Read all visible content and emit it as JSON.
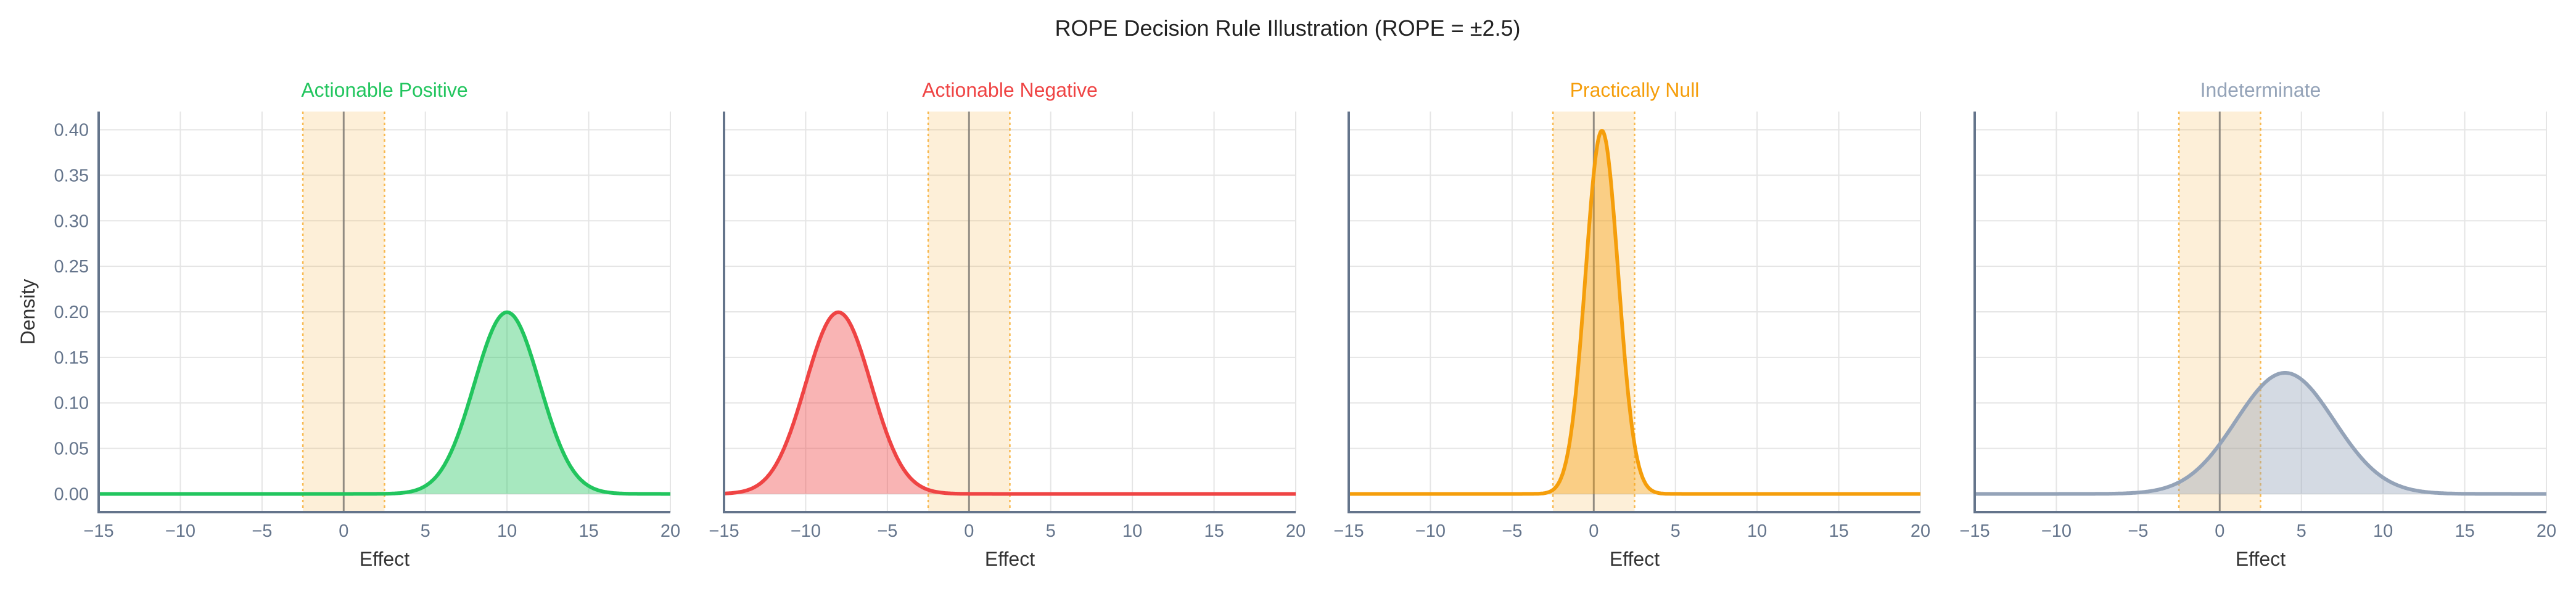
{
  "chart_data": {
    "type": "area",
    "title": "ROPE Decision Rule Illustration (ROPE = ±2.5)",
    "rope": [
      -2.5,
      2.5
    ],
    "xlim": [
      -15,
      20
    ],
    "ylim": [
      -0.02,
      0.42
    ],
    "xticks": [
      -15,
      -10,
      -5,
      0,
      5,
      10,
      15,
      20
    ],
    "xtick_labels": [
      "−15",
      "−10",
      "−5",
      "0",
      "5",
      "10",
      "15",
      "20"
    ],
    "yticks": [
      0,
      0.05,
      0.1,
      0.15,
      0.2,
      0.25,
      0.3,
      0.35,
      0.4
    ],
    "ytick_labels": [
      "0.00",
      "0.05",
      "0.10",
      "0.15",
      "0.20",
      "0.25",
      "0.30",
      "0.35",
      "0.40"
    ],
    "xlabel": "Effect",
    "ylabel": "Density",
    "grid": true,
    "panels": [
      {
        "title": "Actionable Positive",
        "distribution": "normal",
        "mean": 10,
        "sd": 2,
        "color": "#22c55e"
      },
      {
        "title": "Actionable Negative",
        "distribution": "normal",
        "mean": -8,
        "sd": 2,
        "color": "#ef4444"
      },
      {
        "title": "Practically Null",
        "distribution": "normal",
        "mean": 0.5,
        "sd": 1,
        "color": "#f59e0b"
      },
      {
        "title": "Indeterminate",
        "distribution": "normal",
        "mean": 4,
        "sd": 3,
        "color": "#94a3b8"
      }
    ],
    "rope_color": "#f59e0b",
    "axis_color": "#64748b"
  }
}
